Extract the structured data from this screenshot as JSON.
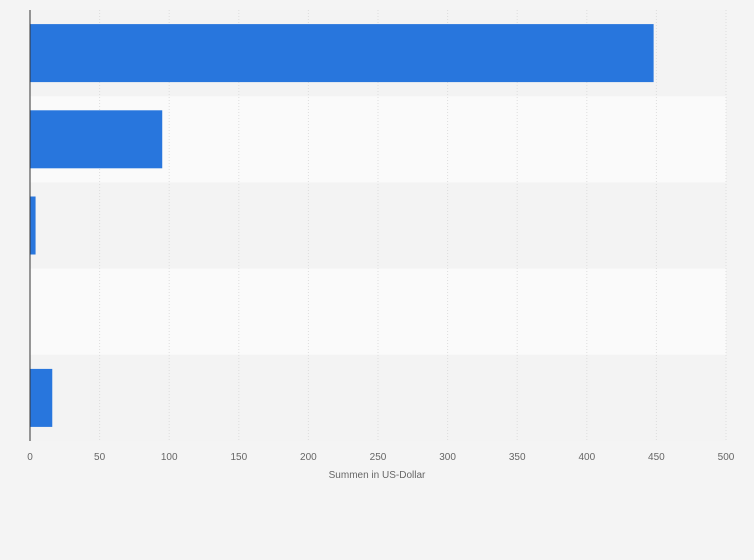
{
  "chart_data": {
    "type": "bar",
    "orientation": "horizontal",
    "categories": [
      "",
      "",
      "",
      "",
      ""
    ],
    "values": [
      448,
      95,
      4,
      0,
      16
    ],
    "title": "",
    "xlabel": "Summen in US-Dollar",
    "ylabel": "",
    "xlim": [
      0,
      500
    ],
    "xticks": [
      0,
      50,
      100,
      150,
      200,
      250,
      300,
      350,
      400,
      450,
      500
    ],
    "tick_labels": [
      "0",
      "50",
      "100",
      "150",
      "200",
      "250",
      "300",
      "350",
      "400",
      "450",
      "500"
    ],
    "grid": true,
    "legend": "none",
    "colors": {
      "bar": "#2876dd",
      "band_dark": "#f3f3f3",
      "band_light": "#fafafa",
      "grid": "#dddddd",
      "axis": "#333333"
    }
  }
}
